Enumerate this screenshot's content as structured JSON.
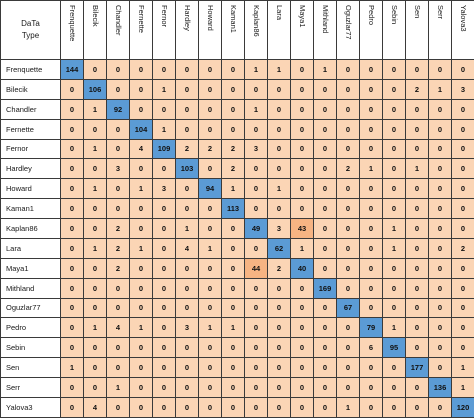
{
  "corner_label_line1": "DaTa",
  "corner_label_line2": "Type",
  "columns": [
    "Frenquette",
    "Bilecik",
    "Chandler",
    "Fernette",
    "Fernor",
    "Hardley",
    "Howard",
    "Kaman1",
    "Kaplan86",
    "Lara",
    "Maya1",
    "Mithland",
    "Oguzlar77",
    "Pedro",
    "Sebin",
    "Sen",
    "Serr",
    "Yalova3"
  ],
  "rows": [
    {
      "label": "Frenquette",
      "values": [
        "144",
        "0",
        "0",
        "0",
        "0",
        "0",
        "0",
        "0",
        "1",
        "1",
        "0",
        "1",
        "0",
        "0",
        "0",
        "0",
        "0",
        "0"
      ]
    },
    {
      "label": "Bilecik",
      "values": [
        "0",
        "106",
        "0",
        "0",
        "1",
        "0",
        "0",
        "0",
        "0",
        "0",
        "0",
        "0",
        "0",
        "0",
        "0",
        "2",
        "1",
        "3"
      ]
    },
    {
      "label": "Chandler",
      "values": [
        "0",
        "1",
        "92",
        "0",
        "0",
        "0",
        "0",
        "0",
        "1",
        "0",
        "0",
        "0",
        "0",
        "0",
        "0",
        "0",
        "0",
        "0"
      ]
    },
    {
      "label": "Fernette",
      "values": [
        "0",
        "0",
        "0",
        "104",
        "1",
        "0",
        "0",
        "0",
        "0",
        "0",
        "0",
        "0",
        "0",
        "0",
        "0",
        "0",
        "0",
        "0"
      ]
    },
    {
      "label": "Fernor",
      "values": [
        "0",
        "1",
        "0",
        "4",
        "109",
        "2",
        "2",
        "2",
        "3",
        "0",
        "0",
        "0",
        "0",
        "0",
        "0",
        "0",
        "0",
        "0"
      ]
    },
    {
      "label": "Hardley",
      "values": [
        "0",
        "0",
        "3",
        "0",
        "0",
        "103",
        "0",
        "2",
        "0",
        "0",
        "0",
        "0",
        "2",
        "1",
        "0",
        "1",
        "0",
        "0"
      ]
    },
    {
      "label": "Howard",
      "values": [
        "0",
        "1",
        "0",
        "1",
        "3",
        "0",
        "94",
        "1",
        "0",
        "1",
        "0",
        "0",
        "0",
        "0",
        "0",
        "0",
        "0",
        "0"
      ]
    },
    {
      "label": "Kaman1",
      "values": [
        "0",
        "0",
        "0",
        "0",
        "0",
        "0",
        "0",
        "113",
        "0",
        "0",
        "0",
        "0",
        "0",
        "0",
        "0",
        "0",
        "0",
        "0"
      ]
    },
    {
      "label": "Kaplan86",
      "values": [
        "0",
        "0",
        "2",
        "0",
        "0",
        "1",
        "0",
        "0",
        "49",
        "3",
        "43",
        "0",
        "0",
        "0",
        "1",
        "0",
        "0",
        "0"
      ]
    },
    {
      "label": "Lara",
      "values": [
        "0",
        "1",
        "2",
        "1",
        "0",
        "4",
        "1",
        "0",
        "0",
        "62",
        "1",
        "0",
        "0",
        "0",
        "1",
        "0",
        "0",
        "2"
      ]
    },
    {
      "label": "Maya1",
      "values": [
        "0",
        "0",
        "2",
        "0",
        "0",
        "0",
        "0",
        "0",
        "44",
        "2",
        "40",
        "0",
        "0",
        "0",
        "0",
        "0",
        "0",
        "0"
      ]
    },
    {
      "label": "Mithland",
      "values": [
        "0",
        "0",
        "0",
        "0",
        "0",
        "0",
        "0",
        "0",
        "0",
        "0",
        "0",
        "169",
        "0",
        "0",
        "0",
        "0",
        "0",
        "0"
      ]
    },
    {
      "label": "Oguzlar77",
      "values": [
        "0",
        "0",
        "0",
        "0",
        "0",
        "0",
        "0",
        "0",
        "0",
        "0",
        "0",
        "0",
        "67",
        "0",
        "0",
        "0",
        "0",
        "0"
      ]
    },
    {
      "label": "Pedro",
      "values": [
        "0",
        "1",
        "4",
        "1",
        "0",
        "3",
        "1",
        "1",
        "0",
        "0",
        "0",
        "0",
        "0",
        "79",
        "1",
        "0",
        "0",
        "0"
      ]
    },
    {
      "label": "Sebin",
      "values": [
        "0",
        "0",
        "0",
        "0",
        "0",
        "0",
        "0",
        "0",
        "0",
        "0",
        "0",
        "0",
        "0",
        "6",
        "95",
        "0",
        "0",
        "0"
      ]
    },
    {
      "label": "Sen",
      "values": [
        "1",
        "0",
        "0",
        "0",
        "0",
        "0",
        "0",
        "0",
        "0",
        "0",
        "0",
        "0",
        "0",
        "0",
        "0",
        "177",
        "0",
        "1"
      ]
    },
    {
      "label": "Serr",
      "values": [
        "0",
        "0",
        "1",
        "0",
        "0",
        "0",
        "0",
        "0",
        "0",
        "0",
        "0",
        "0",
        "0",
        "0",
        "0",
        "0",
        "136",
        "1"
      ]
    },
    {
      "label": "Yalova3",
      "values": [
        "0",
        "4",
        "0",
        "0",
        "0",
        "0",
        "0",
        "0",
        "0",
        "0",
        "0",
        "0",
        "1",
        "0",
        "0",
        "0",
        "0",
        "120"
      ]
    }
  ],
  "colors": {
    "diagonal": "#5b9bd5",
    "off_diagonal": "#fbd5b5",
    "high_confusion": "#f6b483",
    "grid": "#3a3a3a"
  }
}
